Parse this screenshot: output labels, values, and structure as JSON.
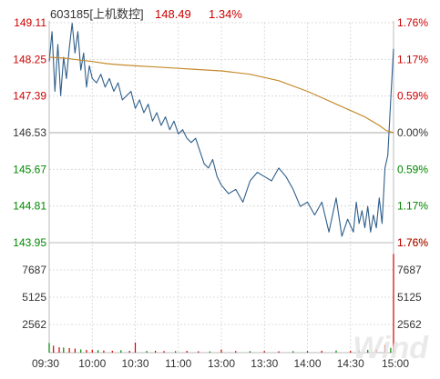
{
  "header": {
    "code_name": "603185[上机数控]",
    "price": "148.49",
    "change_pct": "1.34%"
  },
  "watermark": "Wind",
  "colors": {
    "up": "#cc0000",
    "down": "#008800",
    "neutral": "#333333",
    "price_line": "#2f5f8a",
    "avg_line": "#c58a2b",
    "grid": "#d4d4d4",
    "volume": "#d40000"
  },
  "chart_data": [
    {
      "type": "line",
      "name": "intraday-price",
      "x_ticks": [
        "09:30",
        "10:00",
        "10:30",
        "11:00",
        "13:00",
        "13:30",
        "14:00",
        "14:30",
        "15:00"
      ],
      "y_ticks_left": [
        "149.11",
        "148.25",
        "147.39",
        "146.53",
        "145.67",
        "144.81",
        "143.95"
      ],
      "y_ticks_right": [
        "1.76%",
        "1.17%",
        "0.59%",
        "0.00%",
        "0.59%",
        "1.17%",
        "1.76%"
      ],
      "ylim": [
        143.95,
        149.11
      ],
      "prev_close": 146.53,
      "series": [
        {
          "key": "price",
          "x": [
            0,
            2,
            4,
            6,
            8,
            10,
            12,
            14,
            16,
            18,
            20,
            22,
            24,
            26,
            28,
            30,
            33,
            36,
            39,
            42,
            45,
            48,
            51,
            54,
            57,
            60,
            63,
            66,
            69,
            72,
            75,
            78,
            81,
            84,
            87,
            90,
            93,
            96,
            99,
            102,
            105,
            108,
            111,
            114,
            117,
            120,
            125,
            130,
            135,
            140,
            145,
            150,
            155,
            160,
            165,
            170,
            175,
            180,
            185,
            190,
            195,
            200,
            204,
            208,
            212,
            214,
            216,
            218,
            220,
            222,
            224,
            226,
            228,
            230,
            232,
            234,
            236,
            238,
            240
          ],
          "y": [
            148.2,
            148.9,
            147.5,
            148.6,
            147.4,
            148.3,
            147.8,
            148.5,
            149.1,
            148.4,
            148.9,
            148.0,
            148.4,
            147.6,
            148.1,
            147.8,
            147.7,
            147.9,
            147.6,
            147.8,
            147.5,
            147.7,
            147.3,
            147.4,
            147.5,
            147.1,
            147.3,
            147.0,
            147.2,
            146.8,
            147.0,
            146.7,
            146.9,
            146.6,
            146.8,
            146.5,
            146.6,
            146.4,
            146.3,
            146.4,
            146.1,
            145.8,
            145.7,
            145.9,
            145.5,
            145.3,
            145.1,
            145.2,
            144.9,
            145.4,
            145.6,
            145.5,
            145.4,
            145.7,
            145.5,
            145.2,
            144.8,
            144.9,
            144.6,
            144.9,
            144.2,
            145.0,
            144.1,
            144.5,
            144.2,
            144.9,
            144.4,
            144.7,
            144.3,
            144.8,
            144.2,
            144.6,
            144.3,
            145.0,
            144.4,
            145.7,
            146.0,
            147.3,
            148.5
          ]
        },
        {
          "key": "average",
          "x": [
            0,
            10,
            20,
            30,
            40,
            50,
            60,
            70,
            80,
            90,
            100,
            110,
            120,
            140,
            160,
            180,
            190,
            200,
            210,
            220,
            230,
            235,
            240
          ],
          "y": [
            148.3,
            148.28,
            148.24,
            148.2,
            148.15,
            148.12,
            148.1,
            148.08,
            148.06,
            148.04,
            148.02,
            148.0,
            147.98,
            147.9,
            147.75,
            147.5,
            147.35,
            147.2,
            147.05,
            146.9,
            146.7,
            146.58,
            146.53
          ]
        }
      ]
    },
    {
      "type": "bar",
      "name": "volume",
      "y_ticks_left": [
        "7687",
        "5125",
        "2562"
      ],
      "y_ticks_right": [
        "1.76%"
      ],
      "ylim": [
        0,
        10250
      ],
      "x": [
        0,
        3,
        7,
        10,
        14,
        18,
        22,
        26,
        30,
        34,
        38,
        44,
        50,
        56,
        60,
        68,
        74,
        80,
        88,
        96,
        104,
        112,
        120,
        130,
        140,
        150,
        160,
        170,
        180,
        190,
        200,
        210,
        216,
        222,
        228,
        234,
        238,
        240
      ],
      "values": [
        900,
        650,
        500,
        480,
        420,
        380,
        300,
        260,
        280,
        240,
        200,
        180,
        230,
        170,
        950,
        160,
        180,
        150,
        140,
        170,
        130,
        120,
        300,
        150,
        140,
        160,
        130,
        140,
        150,
        180,
        200,
        170,
        230,
        260,
        300,
        700,
        450,
        9200
      ]
    }
  ]
}
